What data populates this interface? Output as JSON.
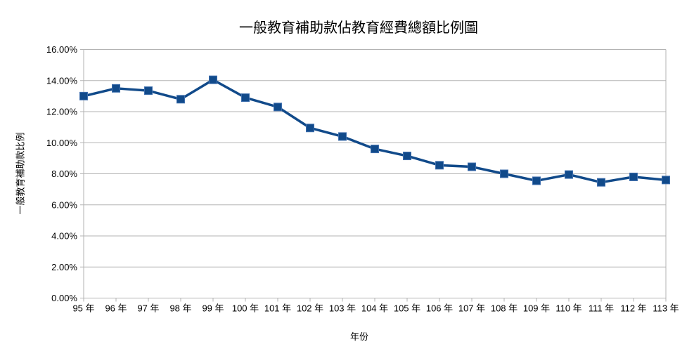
{
  "page": {
    "background_color": "#ffffff",
    "text_color": "#000000"
  },
  "chart_data": {
    "type": "line",
    "title": "一般教育補助款佔教育經費總額比例圖",
    "xlabel": "年份",
    "ylabel": "一般教育補助款比例",
    "categories": [
      "95 年",
      "96 年",
      "97 年",
      "98 年",
      "99 年",
      "100 年",
      "101 年",
      "102 年",
      "103 年",
      "104 年",
      "105 年",
      "106 年",
      "107 年",
      "108 年",
      "109 年",
      "110 年",
      "111 年",
      "112 年",
      "113 年"
    ],
    "series": [
      {
        "name": "一般教育補助款比例",
        "values": [
          13.0,
          13.5,
          13.35,
          12.8,
          14.05,
          12.9,
          12.3,
          10.95,
          10.4,
          9.6,
          9.15,
          8.55,
          8.45,
          8.0,
          7.55,
          7.95,
          7.45,
          7.8,
          7.6
        ]
      }
    ],
    "unit": "%",
    "ylim": [
      0,
      16
    ],
    "ytick_step": 2,
    "ytick_labels": [
      "0.00%",
      "2.00%",
      "4.00%",
      "6.00%",
      "8.00%",
      "10.00%",
      "12.00%",
      "14.00%",
      "16.00%"
    ],
    "grid": "horizontal",
    "legend": "none",
    "marker": "square",
    "colors": {
      "series": "#114a8a",
      "marker_border": "#3f6fae",
      "gridline": "#b3b3b3",
      "axis_line": "#b3b3b3",
      "label_text": "#000000"
    }
  }
}
